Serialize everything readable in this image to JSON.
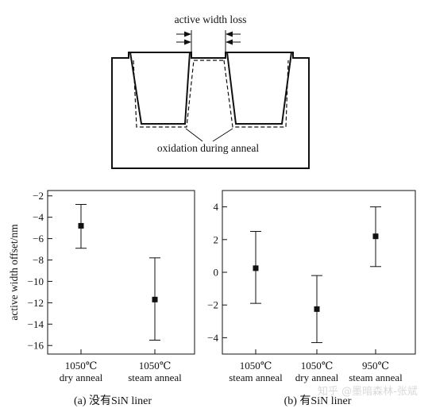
{
  "diagram": {
    "label_top": "active width loss",
    "label_bottom": "oxidation during anneal"
  },
  "watermark": "知乎 @墨暗森林-张斌",
  "chart_data": [
    {
      "type": "scatter",
      "title": "",
      "caption": "(a) 没有SiN liner",
      "ylabel": "active width offset/nm",
      "xlabel": "",
      "ylim": [
        -16.8,
        -1.5
      ],
      "yticks": [
        -2,
        -4,
        -6,
        -8,
        -10,
        -12,
        -14,
        -16
      ],
      "grid": false,
      "categories": [
        {
          "line1": "1050℃",
          "line2": "dry anneal"
        },
        {
          "line1": "1050℃",
          "line2": "steam anneal"
        }
      ],
      "points": [
        {
          "mean": -4.8,
          "low": -6.9,
          "high": -2.8
        },
        {
          "mean": -11.7,
          "low": -15.5,
          "high": -7.8
        }
      ]
    },
    {
      "type": "scatter",
      "title": "",
      "caption": "(b) 有SiN liner",
      "ylabel": "",
      "xlabel": "",
      "ylim": [
        -5,
        5
      ],
      "yticks": [
        4,
        2,
        0,
        -2,
        -4
      ],
      "grid": false,
      "categories": [
        {
          "line1": "1050℃",
          "line2": "steam anneal"
        },
        {
          "line1": "1050℃",
          "line2": "dry anneal"
        },
        {
          "line1": "950℃",
          "line2": "steam anneal"
        }
      ],
      "points": [
        {
          "mean": 0.25,
          "low": -1.9,
          "high": 2.5
        },
        {
          "mean": -2.25,
          "low": -4.3,
          "high": -0.2
        },
        {
          "mean": 2.2,
          "low": 0.35,
          "high": 4.0
        }
      ]
    }
  ]
}
